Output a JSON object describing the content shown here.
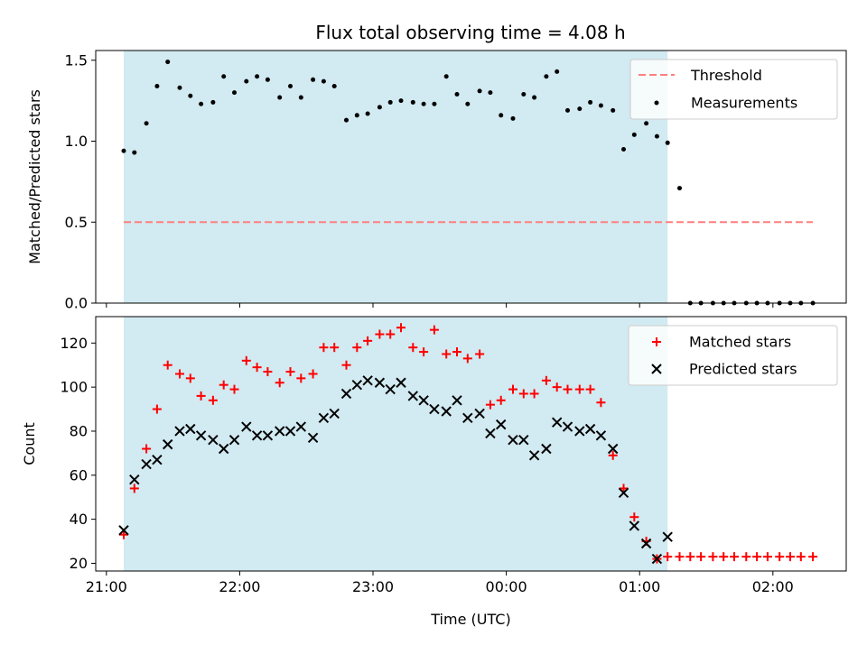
{
  "chart_data": {
    "type": "scatter",
    "title": "Flux total observing time = 4.08 h",
    "xlabel": "Time (UTC)",
    "x_tick_labels": [
      "21:00",
      "22:00",
      "23:00",
      "00:00",
      "01:00",
      "02:00"
    ],
    "x_tick_hours": [
      0,
      1,
      2,
      3,
      4,
      5
    ],
    "x_axis_note": "hours after 21:00 UTC",
    "xlim_hours": [
      -0.08,
      5.55
    ],
    "shaded_span_hours": [
      0.13,
      4.21
    ],
    "shade_color": "#add8e6",
    "top_panel": {
      "ylabel": "Matched/Predicted stars",
      "ylim": [
        0,
        1.56
      ],
      "y_ticks": [
        0.0,
        0.5,
        1.0,
        1.5
      ],
      "y_tick_labels": [
        "0.0",
        "0.5",
        "1.0",
        "1.5"
      ],
      "threshold": {
        "value": 0.5,
        "x_range_hours": [
          0.13,
          5.3
        ],
        "color": "#ff7f7f"
      },
      "legend": {
        "position": "top-right",
        "threshold_label": "Threshold",
        "measurements_label": "Measurements"
      },
      "measurements": {
        "color": "#000000",
        "x": [
          0.13,
          0.21,
          0.3,
          0.38,
          0.46,
          0.55,
          0.63,
          0.71,
          0.8,
          0.88,
          0.96,
          1.05,
          1.13,
          1.21,
          1.3,
          1.38,
          1.46,
          1.55,
          1.63,
          1.71,
          1.8,
          1.88,
          1.96,
          2.05,
          2.13,
          2.21,
          2.3,
          2.38,
          2.46,
          2.55,
          2.63,
          2.71,
          2.8,
          2.88,
          2.96,
          3.05,
          3.13,
          3.21,
          3.3,
          3.38,
          3.46,
          3.55,
          3.63,
          3.71,
          3.8,
          3.88,
          3.96,
          4.05,
          4.13,
          4.21,
          4.3,
          4.38,
          4.46,
          4.55,
          4.63,
          4.71,
          4.8,
          4.88,
          4.96,
          5.05,
          5.13,
          5.21,
          5.3
        ],
        "y": [
          0.94,
          0.93,
          1.11,
          1.34,
          1.49,
          1.33,
          1.28,
          1.23,
          1.24,
          1.4,
          1.3,
          1.37,
          1.4,
          1.38,
          1.27,
          1.34,
          1.27,
          1.38,
          1.37,
          1.34,
          1.13,
          1.16,
          1.17,
          1.21,
          1.24,
          1.25,
          1.24,
          1.23,
          1.23,
          1.4,
          1.29,
          1.23,
          1.31,
          1.3,
          1.16,
          1.14,
          1.29,
          1.27,
          1.4,
          1.43,
          1.19,
          1.2,
          1.24,
          1.22,
          1.19,
          0.95,
          1.04,
          1.11,
          1.03,
          0.99,
          0.71,
          0,
          0,
          0,
          0,
          0,
          0,
          0,
          0,
          0,
          0,
          0,
          0
        ]
      }
    },
    "bottom_panel": {
      "ylabel": "Count",
      "ylim": [
        16.5,
        132
      ],
      "y_ticks": [
        20,
        40,
        60,
        80,
        100,
        120
      ],
      "y_tick_labels": [
        "20",
        "40",
        "60",
        "80",
        "100",
        "120"
      ],
      "legend": {
        "position": "top-right"
      },
      "series": [
        {
          "name": "Matched stars",
          "marker": "plus",
          "color": "#ff0000",
          "x": [
            0.13,
            0.21,
            0.3,
            0.38,
            0.46,
            0.55,
            0.63,
            0.71,
            0.8,
            0.88,
            0.96,
            1.05,
            1.13,
            1.21,
            1.3,
            1.38,
            1.46,
            1.55,
            1.63,
            1.71,
            1.8,
            1.88,
            1.96,
            2.05,
            2.13,
            2.21,
            2.3,
            2.38,
            2.46,
            2.55,
            2.63,
            2.71,
            2.8,
            2.88,
            2.96,
            3.05,
            3.13,
            3.21,
            3.3,
            3.38,
            3.46,
            3.55,
            3.63,
            3.71,
            3.8,
            3.88,
            3.96,
            4.05,
            4.13,
            4.21,
            4.3,
            4.38,
            4.46,
            4.55,
            4.63,
            4.71,
            4.8,
            4.88,
            4.96,
            5.05,
            5.13,
            5.21,
            5.3
          ],
          "y": [
            33,
            54,
            72,
            90,
            110,
            106,
            104,
            96,
            94,
            101,
            99,
            112,
            109,
            107,
            102,
            107,
            104,
            106,
            118,
            118,
            110,
            118,
            121,
            124,
            124,
            127,
            118,
            116,
            126,
            115,
            116,
            113,
            115,
            92,
            94,
            99,
            97,
            97,
            103,
            100,
            99,
            99,
            99,
            93,
            69,
            54,
            41,
            30,
            22,
            23,
            23,
            23,
            23,
            23,
            23,
            23,
            23,
            23,
            23,
            23,
            23,
            23,
            23
          ]
        },
        {
          "name": "Predicted stars",
          "marker": "x",
          "color": "#000000",
          "x": [
            0.13,
            0.21,
            0.3,
            0.38,
            0.46,
            0.55,
            0.63,
            0.71,
            0.8,
            0.88,
            0.96,
            1.05,
            1.13,
            1.21,
            1.3,
            1.38,
            1.46,
            1.55,
            1.63,
            1.71,
            1.8,
            1.88,
            1.96,
            2.05,
            2.13,
            2.21,
            2.3,
            2.38,
            2.46,
            2.55,
            2.63,
            2.71,
            2.8,
            2.88,
            2.96,
            3.05,
            3.13,
            3.21,
            3.3,
            3.38,
            3.46,
            3.55,
            3.63,
            3.71,
            3.8,
            3.88,
            3.96,
            4.05,
            4.13,
            4.21
          ],
          "y": [
            35,
            58,
            65,
            67,
            74,
            80,
            81,
            78,
            76,
            72,
            76,
            82,
            78,
            78,
            80,
            80,
            82,
            77,
            86,
            88,
            97,
            101,
            103,
            102,
            99,
            102,
            96,
            94,
            90,
            89,
            94,
            86,
            88,
            79,
            83,
            76,
            76,
            69,
            72,
            84,
            82,
            80,
            81,
            78,
            72,
            52,
            37,
            29,
            22,
            32
          ]
        }
      ]
    }
  }
}
